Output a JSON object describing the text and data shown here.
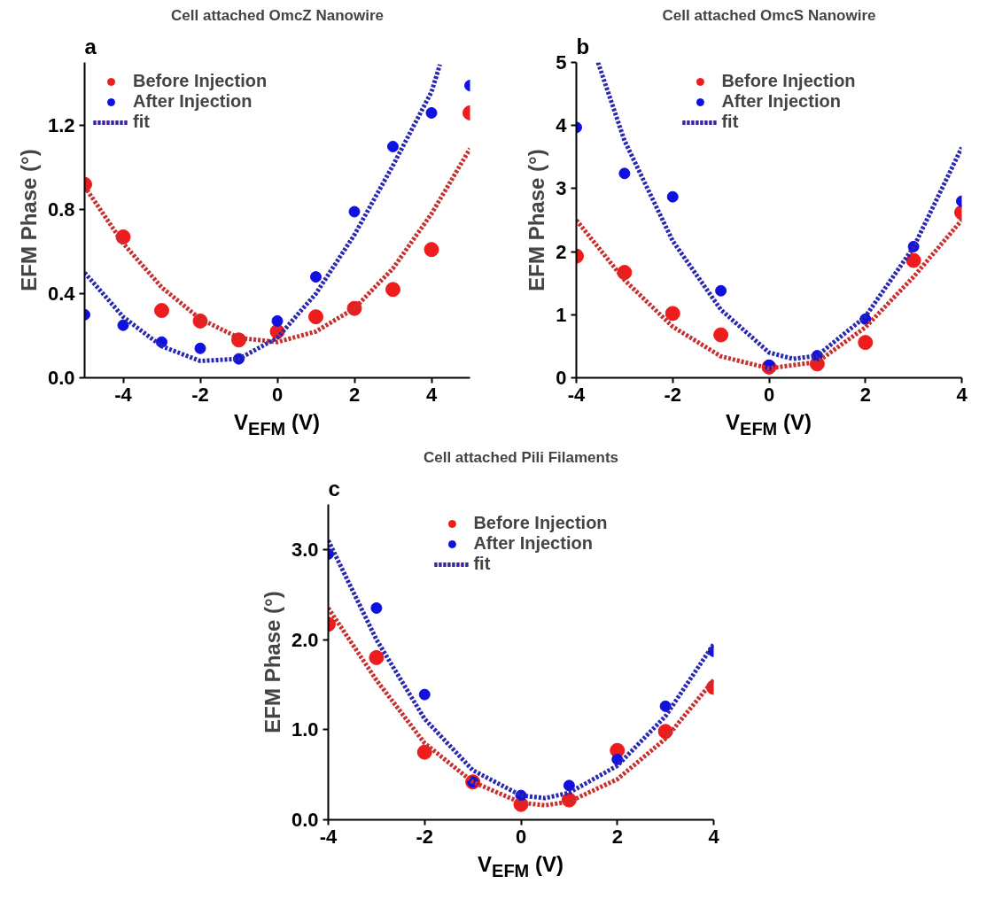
{
  "chart_data": [
    {
      "type": "scatter",
      "title": "Cell attached OmcZ Nanowire",
      "xlabel": "V$_{EFM}$ (V)",
      "ylabel": "EFM Phase (°)",
      "annotations": [
        "a"
      ],
      "x": [
        -5,
        -4,
        -3,
        -2,
        -1,
        0,
        1,
        2,
        3,
        4,
        5
      ],
      "xlim": [
        -5,
        5
      ],
      "xticks": [
        -4,
        -2,
        0,
        2,
        4
      ],
      "ylim": [
        0,
        1.5
      ],
      "yticks": [
        {
          "value": 0,
          "label": "0.0"
        },
        0.4,
        0.8,
        1.2
      ],
      "grid": false,
      "legend": "top left",
      "line_style": "dotted",
      "series": [
        {
          "name": "Before Injection",
          "color": "#ee1c1c",
          "marker": "circle",
          "values": [
            0.92,
            0.67,
            0.32,
            0.27,
            0.18,
            0.22,
            0.29,
            0.33,
            0.42,
            0.61,
            1.26
          ]
        },
        {
          "name": "After Injection",
          "color": "#1010e0",
          "marker": "circle",
          "values": [
            0.3,
            0.25,
            0.17,
            0.14,
            0.09,
            0.27,
            0.48,
            0.79,
            1.1,
            1.26,
            1.39
          ]
        },
        {
          "type": "line",
          "color": "#c83030",
          "x": [
            -5,
            -4,
            -3,
            -2,
            -1,
            0,
            1,
            2,
            3,
            4,
            5
          ],
          "values": [
            0.91,
            0.64,
            0.43,
            0.28,
            0.19,
            0.17,
            0.22,
            0.33,
            0.52,
            0.78,
            1.09
          ]
        },
        {
          "name": "fit",
          "type": "line",
          "color": "#2828b0",
          "x": [
            -5,
            -4,
            -3,
            -2,
            -1,
            0,
            1,
            2,
            3,
            4,
            4.22
          ],
          "values": [
            0.5,
            0.29,
            0.15,
            0.08,
            0.09,
            0.19,
            0.4,
            0.68,
            1.01,
            1.36,
            1.49
          ]
        }
      ]
    },
    {
      "type": "scatter",
      "title": "Cell attached OmcS Nanowire",
      "xlabel": "V$_{EFM}$ (V)",
      "ylabel": "EFM Phase (°)",
      "annotations": [
        "b"
      ],
      "x": [
        -4,
        -3,
        -2,
        -1,
        0,
        1,
        2,
        3,
        4
      ],
      "xlim": [
        -4,
        4
      ],
      "xticks": [
        -4,
        -2,
        0,
        2,
        4
      ],
      "ylim": [
        0,
        5
      ],
      "yticks": [
        0,
        1,
        2,
        3,
        4,
        5
      ],
      "grid": false,
      "legend": "top",
      "line_style": "dotted",
      "series": [
        {
          "name": "Before Injection",
          "color": "#ee1c1c",
          "marker": "circle",
          "values": [
            1.93,
            1.67,
            1.02,
            0.68,
            0.17,
            0.22,
            0.56,
            1.86,
            2.62
          ]
        },
        {
          "name": "After Injection",
          "color": "#1010e0",
          "marker": "circle",
          "values": [
            3.97,
            3.24,
            2.87,
            1.38,
            0.2,
            0.35,
            0.93,
            2.08,
            2.8
          ]
        },
        {
          "type": "line",
          "color": "#c83030",
          "x": [
            -4,
            -3,
            -2,
            -1,
            0,
            1,
            2,
            3,
            4
          ],
          "values": [
            2.5,
            1.55,
            0.81,
            0.34,
            0.15,
            0.25,
            0.8,
            1.6,
            2.5
          ]
        },
        {
          "name": "fit",
          "type": "line",
          "color": "#2828b0",
          "x": [
            -3.55,
            -3,
            -2,
            -1,
            0,
            0.5,
            1,
            2,
            3,
            4
          ],
          "values": [
            5.0,
            3.76,
            2.17,
            1.08,
            0.4,
            0.3,
            0.35,
            0.97,
            2.07,
            3.65
          ]
        }
      ]
    },
    {
      "type": "scatter",
      "title": "Cell attached Pili Filaments",
      "xlabel": "V$_{EFM}$ (V)",
      "ylabel": "EFM Phase (°)",
      "annotations": [
        "c"
      ],
      "x": [
        -4,
        -3,
        -2,
        -1,
        0,
        1,
        2,
        3,
        4
      ],
      "xlim": [
        -4,
        4
      ],
      "xticks": [
        -4,
        -2,
        0,
        2,
        4
      ],
      "ylim": [
        0,
        3.5
      ],
      "yticks": [
        {
          "value": 0,
          "label": "0.0"
        },
        {
          "value": 1,
          "label": "1.0"
        },
        {
          "value": 2,
          "label": "2.0"
        },
        {
          "value": 3,
          "label": "3.0"
        }
      ],
      "grid": false,
      "legend": "top",
      "line_style": "dotted",
      "series": [
        {
          "name": "Before Injection",
          "color": "#ee1c1c",
          "marker": "circle",
          "values": [
            2.17,
            1.8,
            0.75,
            0.42,
            0.17,
            0.22,
            0.77,
            0.98,
            1.47
          ]
        },
        {
          "name": "After Injection",
          "color": "#1010e0",
          "marker": "circle",
          "values": [
            2.95,
            2.35,
            1.39,
            0.42,
            0.27,
            0.38,
            0.67,
            1.26,
            1.87
          ]
        },
        {
          "type": "line",
          "color": "#c83030",
          "x": [
            -4,
            -3,
            -2,
            -1,
            0,
            0.5,
            1,
            2,
            3,
            4
          ],
          "values": [
            2.35,
            1.55,
            0.85,
            0.42,
            0.19,
            0.16,
            0.2,
            0.45,
            0.9,
            1.55
          ]
        },
        {
          "name": "fit",
          "type": "line",
          "color": "#2828b0",
          "x": [
            -4,
            -3,
            -2,
            -1,
            0,
            0.5,
            1,
            2,
            3,
            4
          ],
          "values": [
            3.1,
            2.0,
            1.12,
            0.55,
            0.27,
            0.24,
            0.3,
            0.6,
            1.15,
            1.95
          ]
        }
      ]
    }
  ]
}
